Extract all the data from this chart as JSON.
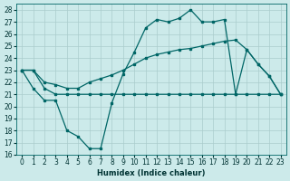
{
  "xlabel": "Humidex (Indice chaleur)",
  "bg_color": "#cceaea",
  "grid_color": "#aacccc",
  "line_color": "#006666",
  "ylim": [
    16,
    28.5
  ],
  "yticks": [
    16,
    17,
    18,
    19,
    20,
    21,
    22,
    23,
    24,
    25,
    26,
    27,
    28
  ],
  "xlim": [
    -0.5,
    23.5
  ],
  "xticks": [
    0,
    1,
    2,
    3,
    4,
    5,
    6,
    7,
    8,
    9,
    10,
    11,
    12,
    13,
    14,
    15,
    16,
    17,
    18,
    19,
    20,
    21,
    22,
    23
  ],
  "line_flat_x": [
    0,
    1,
    2,
    3,
    4,
    5,
    6,
    7,
    8,
    9,
    10,
    11,
    12,
    13,
    14,
    15,
    16,
    17,
    18,
    19,
    20,
    21,
    22,
    23
  ],
  "line_flat_y": [
    23,
    23,
    21.5,
    21,
    21,
    21,
    21,
    21,
    21,
    21,
    21,
    21,
    21,
    21,
    21,
    21,
    21,
    21,
    21,
    21,
    21,
    21,
    21,
    21
  ],
  "line_mid_x": [
    0,
    1,
    2,
    3,
    4,
    5,
    6,
    7,
    8,
    9,
    10,
    11,
    12,
    13,
    14,
    15,
    16,
    17,
    18,
    19,
    20,
    21,
    22,
    23
  ],
  "line_mid_y": [
    23,
    23,
    22,
    21.8,
    21.5,
    21.5,
    22,
    22.3,
    22.6,
    23,
    23.5,
    24,
    24.3,
    24.5,
    24.7,
    24.8,
    25,
    25.2,
    25.4,
    25.5,
    24.7,
    23.5,
    22.5,
    21
  ],
  "line_peak_x": [
    0,
    1,
    2,
    3,
    4,
    5,
    6,
    7,
    8,
    9,
    10,
    11,
    12,
    13,
    14,
    15,
    16,
    17,
    18,
    19,
    20,
    21,
    22,
    23
  ],
  "line_peak_y": [
    23,
    21.5,
    20.5,
    20.5,
    18,
    17.5,
    16.5,
    16.5,
    20.3,
    22.7,
    24.5,
    26.5,
    27.2,
    27,
    27.3,
    28,
    27,
    27,
    27.2,
    21,
    24.7,
    23.5,
    22.5,
    21
  ]
}
